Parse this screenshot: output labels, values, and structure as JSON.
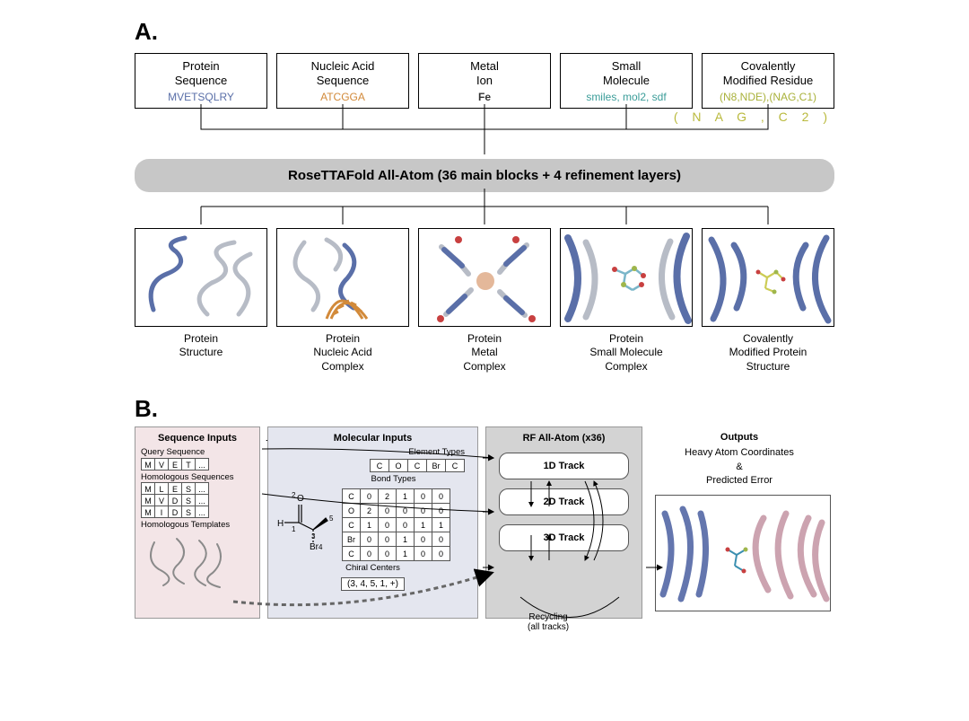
{
  "panelA": {
    "label": "A.",
    "inputs": [
      {
        "title_l1": "Protein",
        "title_l2": "Sequence",
        "value": "MVETSQLRY",
        "value_color": "#5a6fa8"
      },
      {
        "title_l1": "Nucleic Acid",
        "title_l2": "Sequence",
        "value": "ATCGGA",
        "value_color": "#d28a3a"
      },
      {
        "title_l1": "Metal",
        "title_l2": "Ion",
        "value": "Fe",
        "value_color": "#333333"
      },
      {
        "title_l1": "Small",
        "title_l2": "Molecule",
        "value": "smiles, mol2, sdf",
        "value_color": "#3b9d99"
      },
      {
        "title_l1": "Covalently",
        "title_l2": "Modified Residue",
        "value": "(N8,NDE),(NAG,C1)",
        "value_color": "#a9b13a"
      }
    ],
    "extra_overlay": "( N A G , C 2 )",
    "extra_overlay_color": "#b9b93c",
    "model_text": "RoseTTAFold All-Atom (36 main blocks + 4 refinement layers)",
    "model_bg": "#c7c7c7",
    "outputs": [
      {
        "cap_l1": "Protein",
        "cap_l2": "Structure",
        "cap_l3": ""
      },
      {
        "cap_l1": "Protein",
        "cap_l2": "Nucleic Acid",
        "cap_l3": "Complex"
      },
      {
        "cap_l1": "Protein",
        "cap_l2": "Metal",
        "cap_l3": "Complex"
      },
      {
        "cap_l1": "Protein",
        "cap_l2": "Small Molecule",
        "cap_l3": "Complex"
      },
      {
        "cap_l1": "Covalently",
        "cap_l2": "Modified Protein",
        "cap_l3": "Structure"
      }
    ]
  },
  "panelB": {
    "label": "B.",
    "seq": {
      "title": "Sequence Inputs",
      "bg": "#f3e5e7",
      "query_label": "Query Sequence",
      "query": [
        "M",
        "V",
        "E",
        "T",
        "..."
      ],
      "homolog_label": "Homologous Sequences",
      "homologs": [
        [
          "M",
          "L",
          "E",
          "S",
          "..."
        ],
        [
          "M",
          "V",
          "D",
          "S",
          "..."
        ],
        [
          "M",
          "I",
          "D",
          "S",
          "..."
        ]
      ],
      "templates_label": "Homologous Templates"
    },
    "plus_symbol": "+",
    "mol": {
      "title": "Molecular Inputs",
      "bg": "#e4e6ef",
      "elem_label": "Element Types",
      "elements": [
        "C",
        "O",
        "C",
        "Br",
        "C"
      ],
      "bond_label": "Bond Types",
      "bond_headers": [
        "C",
        "O",
        "C",
        "Br",
        "C"
      ],
      "bond_rows": [
        [
          "C",
          "0",
          "2",
          "1",
          "0",
          "0"
        ],
        [
          "O",
          "2",
          "0",
          "0",
          "0",
          "0"
        ],
        [
          "C",
          "1",
          "0",
          "0",
          "1",
          "1"
        ],
        [
          "Br",
          "0",
          "0",
          "1",
          "0",
          "0"
        ],
        [
          "C",
          "0",
          "0",
          "1",
          "0",
          "0"
        ]
      ],
      "chiral_label": "Chiral Centers",
      "chiral_value": "(3, 4, 5, 1, +)",
      "atom_labels": {
        "a1": "1",
        "a2": "2",
        "a3": "3",
        "a4": "4",
        "a5": "5",
        "H": "H",
        "O": "O",
        "Br": "Br"
      }
    },
    "rf": {
      "title": "RF All-Atom (x36)",
      "bg": "#d3d3d3",
      "tracks": [
        "1D Track",
        "2D Track",
        "3D Track"
      ],
      "recycle_l1": "Recycling",
      "recycle_l2": "(all tracks)"
    },
    "out": {
      "title": "Outputs",
      "text_l1": "Heavy Atom Coordinates",
      "text_amp": "&",
      "text_l2": "Predicted Error"
    }
  },
  "colors": {
    "protein_blue": "#5a6fa8",
    "protein_grey": "#b7bcc6",
    "na_orange": "#d28a3a",
    "metal_dot": "#e4b89a",
    "red": "#c84040",
    "green": "#9fb64b",
    "out_pink": "#c79aa8",
    "out_blue": "#4a5fa0"
  }
}
